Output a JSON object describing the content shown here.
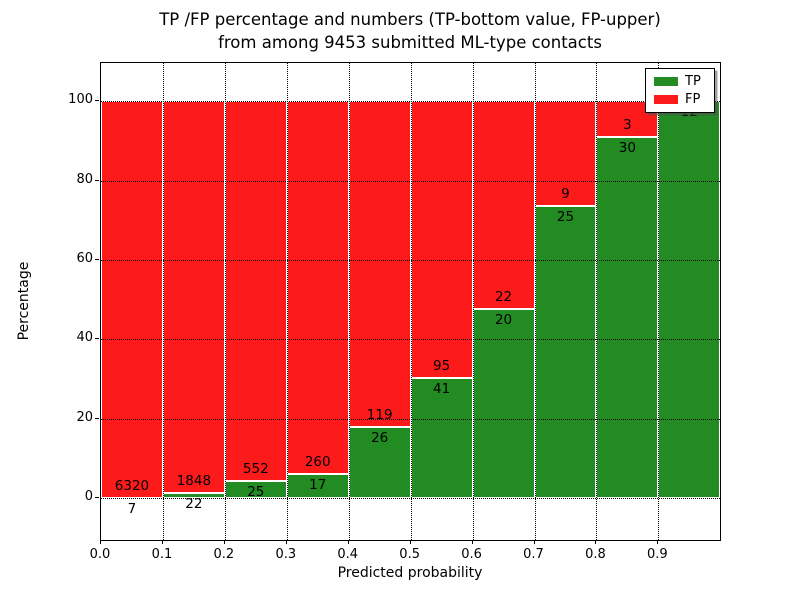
{
  "chart_data": {
    "type": "bar",
    "stacked": true,
    "normalized_to_percent": true,
    "title_line1": "TP /FP percentage and numbers (TP-bottom value, FP-upper)",
    "title_line2": "from among 9453 submitted ML-type contacts",
    "xlabel": "Predicted probability",
    "ylabel": "Percentage",
    "total_contacts": 9453,
    "categories": [
      "0.0-0.1",
      "0.1-0.2",
      "0.2-0.3",
      "0.3-0.4",
      "0.4-0.5",
      "0.5-0.6",
      "0.6-0.7",
      "0.7-0.8",
      "0.8-0.9",
      "0.9-1.0"
    ],
    "series": [
      {
        "name": "TP",
        "color": "#228b22",
        "values": [
          7,
          22,
          25,
          17,
          26,
          41,
          20,
          25,
          30,
          12
        ]
      },
      {
        "name": "FP",
        "color": "#fd1a1a",
        "values": [
          6320,
          1848,
          552,
          260,
          119,
          95,
          22,
          9,
          3,
          0
        ]
      }
    ],
    "tp_percent_of_bin": [
      0.11,
      1.18,
      4.33,
      6.14,
      17.93,
      30.15,
      47.62,
      73.53,
      90.91,
      100.0
    ],
    "x_tick_labels": [
      "0.0",
      "0.1",
      "0.2",
      "0.3",
      "0.4",
      "0.5",
      "0.6",
      "0.7",
      "0.8",
      "0.9"
    ],
    "y_ticks": [
      0,
      20,
      40,
      60,
      80,
      100
    ],
    "xlim": [
      0.0,
      1.0
    ],
    "ylim": [
      -10.6,
      109.6
    ],
    "grid": "dotted black, horizontal at y ticks and vertical at x ticks",
    "bar_edge_color": "#ffffff",
    "legend": {
      "position": "upper right",
      "entries": [
        {
          "label": "TP",
          "color": "#228b22"
        },
        {
          "label": "FP",
          "color": "#fd1a1a"
        }
      ]
    }
  }
}
